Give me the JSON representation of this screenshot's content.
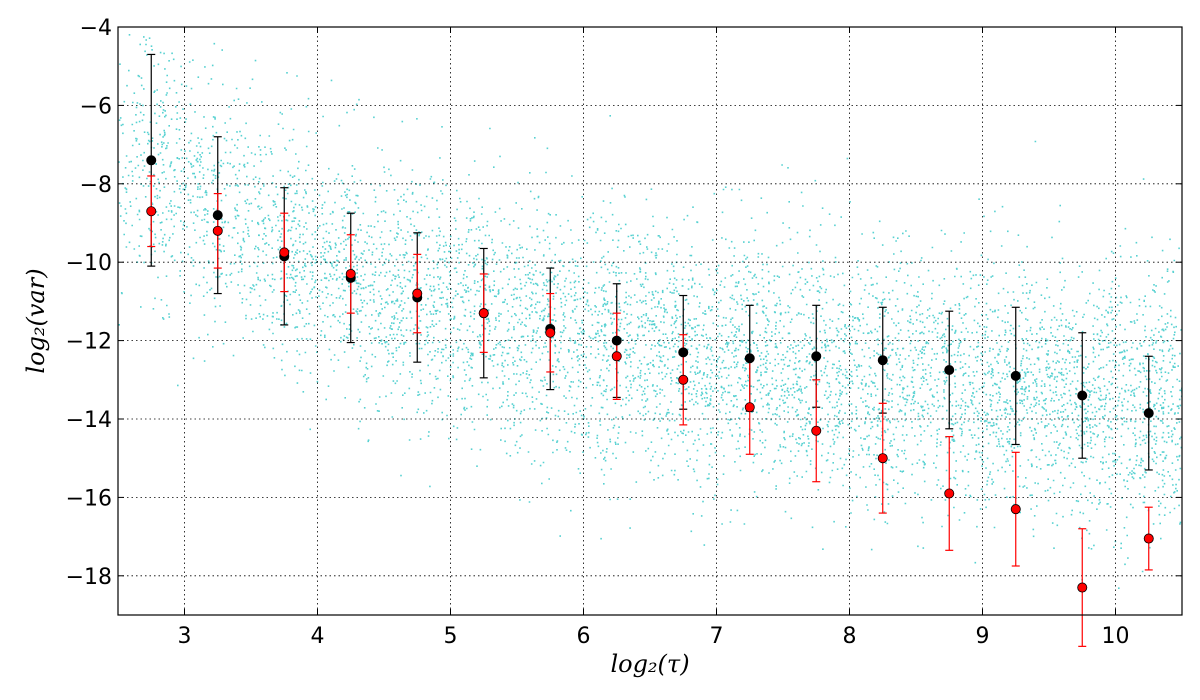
{
  "chart_data": {
    "type": "scatter",
    "title": "",
    "xlabel": "log₂(τ)",
    "ylabel": "log₂(var)",
    "xlim": [
      2.5,
      10.5
    ],
    "ylim": [
      -19,
      -4
    ],
    "xticks": [
      3,
      4,
      5,
      6,
      7,
      8,
      9,
      10
    ],
    "yticks": [
      -4,
      -6,
      -8,
      -10,
      -12,
      -14,
      -16,
      -18
    ],
    "xtick_labels": [
      "3",
      "4",
      "5",
      "6",
      "7",
      "8",
      "9",
      "10"
    ],
    "ytick_labels": [
      "−4",
      "−6",
      "−8",
      "−10",
      "−12",
      "−14",
      "−16",
      "−18"
    ],
    "grid": true,
    "legend": "none",
    "colors": {
      "scatter": "#1fc2c2",
      "series_black": "#000000",
      "series_red": "#ff0000"
    },
    "scatter_cloud": {
      "x_range": [
        2.5,
        10.5
      ],
      "approx_center_by_x": [
        {
          "x": 2.75,
          "y": -7.5
        },
        {
          "x": 4.0,
          "y": -10.0
        },
        {
          "x": 6.0,
          "y": -12.0
        },
        {
          "x": 8.0,
          "y": -12.8
        },
        {
          "x": 10.0,
          "y": -13.5
        }
      ],
      "spread_sd": 1.6
    },
    "series": [
      {
        "x": [
          2.75,
          3.25,
          3.75,
          4.25,
          4.75,
          5.25,
          5.75,
          6.25,
          6.75,
          7.25,
          7.75,
          8.25,
          8.75,
          9.25,
          9.75,
          10.25
        ],
        "y": [
          -7.4,
          -8.8,
          -9.85,
          -10.4,
          -10.9,
          -11.3,
          -11.7,
          -12.0,
          -12.3,
          -12.45,
          -12.4,
          -12.5,
          -12.75,
          -12.9,
          -13.4,
          -13.85
        ],
        "yerr": [
          2.7,
          2.0,
          1.75,
          1.65,
          1.65,
          1.65,
          1.55,
          1.45,
          1.45,
          1.35,
          1.3,
          1.35,
          1.5,
          1.75,
          1.6,
          1.45
        ]
      },
      {
        "x": [
          2.75,
          3.25,
          3.75,
          4.25,
          4.75,
          5.25,
          5.75,
          6.25,
          6.75,
          7.25,
          7.75,
          8.25,
          8.75,
          9.25,
          9.75,
          10.25
        ],
        "y": [
          -8.7,
          -9.2,
          -9.75,
          -10.3,
          -10.8,
          -11.3,
          -11.8,
          -12.4,
          -13.0,
          -13.7,
          -14.3,
          -15.0,
          -15.9,
          -16.3,
          -18.3,
          -17.05
        ],
        "yerr": [
          0.9,
          0.95,
          1.0,
          1.0,
          1.0,
          1.0,
          1.0,
          1.1,
          1.15,
          1.2,
          1.3,
          1.4,
          1.45,
          1.45,
          1.5,
          0.8
        ]
      }
    ]
  }
}
